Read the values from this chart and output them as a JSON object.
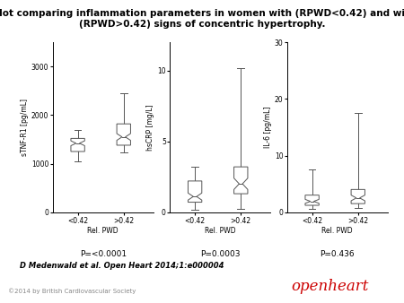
{
  "title": "Box plot comparing inflammation parameters in women with (RPWD<0.42) and without\n(RPWD>0.42) signs of concentric hypertrophy.",
  "title_fontsize": 7.5,
  "citation": "D Medenwald et al. Open Heart 2014;1:e000004",
  "copyright": "©2014 by British Cardiovascular Society",
  "subplots": [
    {
      "ylabel": "sTNF-R1 [pg/mL]",
      "xlabel": "Rel. PWD",
      "pvalue": "P=<0.0001",
      "ylim": [
        0,
        3500
      ],
      "yticks": [
        0,
        1000,
        2000,
        3000
      ],
      "ytick_labels": [
        "0",
        "1000",
        "2000",
        "3000"
      ],
      "xtick_labels": [
        "<0.42",
        ">0.42"
      ],
      "box1": {
        "q1": 1250,
        "median": 1420,
        "q3": 1520,
        "whisker_low": 1050,
        "whisker_high": 1700,
        "notch_low": 1370,
        "notch_high": 1470
      },
      "box2": {
        "q1": 1380,
        "median": 1550,
        "q3": 1820,
        "whisker_low": 1230,
        "whisker_high": 2450,
        "notch_low": 1480,
        "notch_high": 1620
      }
    },
    {
      "ylabel": "hsCRP [mg/L]",
      "xlabel": "Rel. PWD",
      "pvalue": "P=0.0003",
      "ylim": [
        0,
        12
      ],
      "yticks": [
        0,
        5,
        10
      ],
      "ytick_labels": [
        "0",
        "5",
        "10"
      ],
      "xtick_labels": [
        "<0.42",
        ">0.42"
      ],
      "box1": {
        "q1": 0.7,
        "median": 1.1,
        "q3": 2.2,
        "whisker_low": 0.15,
        "whisker_high": 3.2,
        "notch_low": 0.85,
        "notch_high": 1.35
      },
      "box2": {
        "q1": 1.3,
        "median": 2.0,
        "q3": 3.2,
        "whisker_low": 0.25,
        "whisker_high": 10.2,
        "notch_low": 1.6,
        "notch_high": 2.4
      }
    },
    {
      "ylabel": "IL-6 [pg/mL]",
      "xlabel": "Rel. PWD",
      "pvalue": "P=0.436",
      "ylim": [
        0,
        30
      ],
      "yticks": [
        0,
        10,
        20,
        30
      ],
      "ytick_labels": [
        "0",
        "10",
        "20",
        "30"
      ],
      "xtick_labels": [
        "<0.42",
        ">0.42"
      ],
      "box1": {
        "q1": 1.2,
        "median": 1.9,
        "q3": 3.0,
        "whisker_low": 0.5,
        "whisker_high": 7.5,
        "notch_low": 1.55,
        "notch_high": 2.25
      },
      "box2": {
        "q1": 1.5,
        "median": 2.5,
        "q3": 4.0,
        "whisker_low": 0.8,
        "whisker_high": 17.5,
        "notch_low": 2.0,
        "notch_high": 3.0
      }
    }
  ]
}
